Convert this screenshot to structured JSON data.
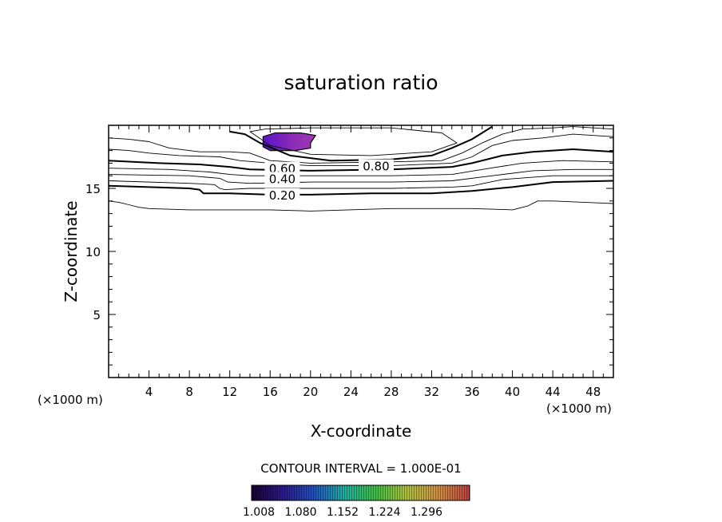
{
  "chart_data": {
    "type": "contour",
    "title": "saturation ratio",
    "xlabel": "X-coordinate",
    "ylabel": "Z-coordinate",
    "x_unit": "(×1000 m)",
    "y_unit": "(×1000 m)",
    "xlim": [
      0,
      50
    ],
    "ylim": [
      0,
      20
    ],
    "x_ticks": [
      4,
      8,
      12,
      16,
      20,
      24,
      28,
      32,
      36,
      40,
      44,
      48
    ],
    "y_ticks": [
      5,
      10,
      15
    ],
    "contour_interval_text": "CONTOUR INTERVAL = 1.000E-01",
    "contour_labels": [
      {
        "text": "0.60",
        "x": 17.2,
        "z": 16.6
      },
      {
        "text": "0.40",
        "x": 17.2,
        "z": 15.8
      },
      {
        "text": "0.20",
        "x": 17.2,
        "z": 14.5
      },
      {
        "text": "0.80",
        "x": 26.5,
        "z": 16.8
      }
    ],
    "contours": [
      {
        "level": 0.1,
        "bold": false,
        "points": [
          [
            0,
            14
          ],
          [
            1,
            13.9
          ],
          [
            2,
            13.7
          ],
          [
            3,
            13.5
          ],
          [
            4,
            13.4
          ],
          [
            8,
            13.3
          ],
          [
            16,
            13.3
          ],
          [
            20,
            13.2
          ],
          [
            28,
            13.4
          ],
          [
            36,
            13.4
          ],
          [
            40,
            13.3
          ],
          [
            41.5,
            13.6
          ],
          [
            42.5,
            14
          ],
          [
            44,
            14
          ],
          [
            50,
            13.8
          ]
        ]
      },
      {
        "level": 0.2,
        "bold": true,
        "points": [
          [
            0,
            15.2
          ],
          [
            4,
            15.1
          ],
          [
            8,
            15
          ],
          [
            9,
            14.9
          ],
          [
            9.4,
            14.6
          ],
          [
            12,
            14.6
          ],
          [
            16,
            14.5
          ],
          [
            20,
            14.5
          ],
          [
            26,
            14.6
          ],
          [
            32,
            14.6
          ],
          [
            36,
            14.8
          ],
          [
            40,
            15.1
          ],
          [
            44,
            15.5
          ],
          [
            50,
            15.6
          ]
        ]
      },
      {
        "level": 0.3,
        "bold": false,
        "points": [
          [
            0,
            15.6
          ],
          [
            8,
            15.4
          ],
          [
            10.5,
            15.3
          ],
          [
            11,
            15
          ],
          [
            11.5,
            14.9
          ],
          [
            14,
            15
          ],
          [
            20,
            15
          ],
          [
            28,
            15
          ],
          [
            34,
            15.1
          ],
          [
            36,
            15.2
          ],
          [
            39,
            15.7
          ],
          [
            44,
            16
          ],
          [
            50,
            16
          ]
        ]
      },
      {
        "level": 0.4,
        "bold": false,
        "points": [
          [
            0,
            16.1
          ],
          [
            8,
            16
          ],
          [
            11,
            15.8
          ],
          [
            11.8,
            15.5
          ],
          [
            14,
            15.4
          ],
          [
            20,
            15.5
          ],
          [
            28,
            15.5
          ],
          [
            34,
            15.6
          ],
          [
            38,
            16
          ],
          [
            42,
            16.4
          ],
          [
            46,
            16.5
          ],
          [
            50,
            16.5
          ]
        ]
      },
      {
        "level": 0.5,
        "bold": false,
        "points": [
          [
            0,
            16.6
          ],
          [
            6,
            16.5
          ],
          [
            10,
            16.3
          ],
          [
            12,
            16.1
          ],
          [
            14,
            16
          ],
          [
            20,
            16
          ],
          [
            28,
            16
          ],
          [
            34,
            16.1
          ],
          [
            37,
            16.5
          ],
          [
            41,
            17
          ],
          [
            45,
            17.2
          ],
          [
            50,
            17.1
          ]
        ]
      },
      {
        "level": 0.6,
        "bold": true,
        "points": [
          [
            0,
            17.2
          ],
          [
            5,
            17
          ],
          [
            9,
            16.9
          ],
          [
            12,
            16.7
          ],
          [
            14,
            16.5
          ],
          [
            20,
            16.4
          ],
          [
            28,
            16.5
          ],
          [
            34,
            16.7
          ],
          [
            36,
            17
          ],
          [
            39,
            17.6
          ],
          [
            42,
            17.9
          ],
          [
            46,
            18.1
          ],
          [
            50,
            17.9
          ]
        ]
      },
      {
        "level": 0.7,
        "bold": false,
        "points": [
          [
            0,
            18.1
          ],
          [
            2,
            18
          ],
          [
            4,
            17.8
          ],
          [
            7,
            17.6
          ],
          [
            11,
            17.5
          ],
          [
            13,
            17.2
          ],
          [
            16,
            17
          ],
          [
            20,
            16.8
          ],
          [
            28,
            16.8
          ],
          [
            34,
            17
          ],
          [
            36,
            17.5
          ],
          [
            38,
            18.4
          ],
          [
            40,
            18.8
          ],
          [
            43,
            19
          ],
          [
            46,
            19.3
          ],
          [
            50,
            19.1
          ]
        ]
      },
      {
        "level": 0.8,
        "bold": false,
        "points": [
          [
            0,
            19
          ],
          [
            2,
            18.9
          ],
          [
            4,
            18.7
          ],
          [
            6,
            18.2
          ],
          [
            9,
            17.9
          ],
          [
            12,
            17.9
          ],
          [
            14,
            17.8
          ],
          [
            16,
            17.2
          ],
          [
            20,
            17
          ],
          [
            28,
            17.1
          ],
          [
            33,
            17.2
          ],
          [
            35,
            17.8
          ],
          [
            37,
            18.6
          ],
          [
            39,
            19.3
          ],
          [
            41,
            19.7
          ],
          [
            44,
            19.8
          ],
          [
            46,
            19.9
          ],
          [
            50,
            19.7
          ]
        ]
      },
      {
        "level": 0.9,
        "bold": true,
        "points": [
          [
            12,
            19.5
          ],
          [
            13.5,
            19.3
          ],
          [
            15,
            18.6
          ],
          [
            18,
            17.6
          ],
          [
            22,
            17.2
          ],
          [
            28,
            17.3
          ],
          [
            32,
            17.6
          ],
          [
            34,
            18.2
          ],
          [
            36,
            18.9
          ],
          [
            37,
            19.4
          ],
          [
            38,
            19.9
          ]
        ]
      },
      {
        "level": 1.0,
        "bold": false,
        "closed": true,
        "points": [
          [
            14,
            19.5
          ],
          [
            16,
            18.4
          ],
          [
            20,
            17.7
          ],
          [
            26,
            17.6
          ],
          [
            32,
            17.9
          ],
          [
            34.5,
            18.6
          ],
          [
            33,
            19.4
          ],
          [
            28,
            19.8
          ],
          [
            20,
            19.8
          ],
          [
            15.5,
            19.7
          ]
        ]
      }
    ],
    "colorbar": {
      "labels": [
        "1.008",
        "1.080",
        "1.152",
        "1.224",
        "1.296"
      ],
      "min": 1.008,
      "max": 1.35,
      "colors": [
        "#1a0030",
        "#2a1a8a",
        "#2050c0",
        "#20b0a0",
        "#40c040",
        "#b0c040",
        "#d09040",
        "#c04040"
      ]
    },
    "supersaturated_region": {
      "value_range": [
        1.008,
        1.08
      ],
      "colors": [
        "#5a14c8",
        "#8a2ab8",
        "#a03ab0"
      ],
      "boundary": [
        [
          15.3,
          19.1
        ],
        [
          16.5,
          19.4
        ],
        [
          19,
          19.4
        ],
        [
          20.5,
          19.2
        ],
        [
          20,
          18.6
        ],
        [
          20,
          18.2
        ],
        [
          18.5,
          18
        ],
        [
          16,
          18
        ],
        [
          15.3,
          18.3
        ]
      ]
    }
  }
}
